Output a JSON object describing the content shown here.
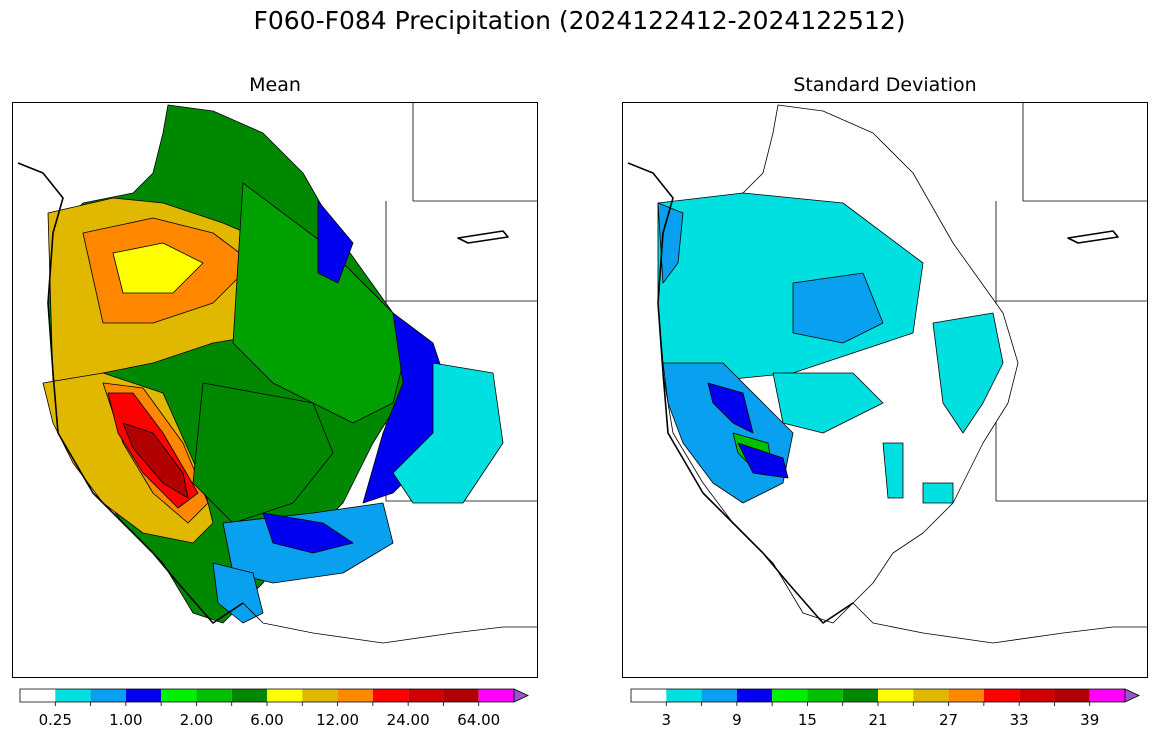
{
  "figure": {
    "title": "F060-F084 Precipitation (2024122412-2024122512)"
  },
  "panels": [
    {
      "id": "mean",
      "title": "Mean",
      "colorbar": {
        "colors": [
          "#ffffff",
          "#00e0e0",
          "#0aa0f0",
          "#0000f0",
          "#00f000",
          "#00c000",
          "#008800",
          "#ffff00",
          "#e0b800",
          "#ff8800",
          "#ff0000",
          "#d00000",
          "#b00000",
          "#ff00ff",
          "#9955cc"
        ],
        "extend": "max",
        "tick_labels": [
          "0.25",
          "1.00",
          "2.00",
          "6.00",
          "12.00",
          "24.00",
          "64.00"
        ],
        "tick_bins": [
          1,
          3,
          5,
          7,
          9,
          11,
          13
        ]
      }
    },
    {
      "id": "stddev",
      "title": "Standard Deviation",
      "colorbar": {
        "colors": [
          "#ffffff",
          "#00e0e0",
          "#0aa0f0",
          "#0000f0",
          "#00f000",
          "#00c000",
          "#008800",
          "#ffff00",
          "#e0b800",
          "#ff8800",
          "#ff0000",
          "#d00000",
          "#b00000",
          "#ff00ff",
          "#9955cc"
        ],
        "extend": "max",
        "tick_labels": [
          "3",
          "9",
          "15",
          "21",
          "27",
          "33",
          "39"
        ],
        "tick_bins": [
          1,
          3,
          5,
          7,
          9,
          11,
          13
        ]
      }
    }
  ]
}
